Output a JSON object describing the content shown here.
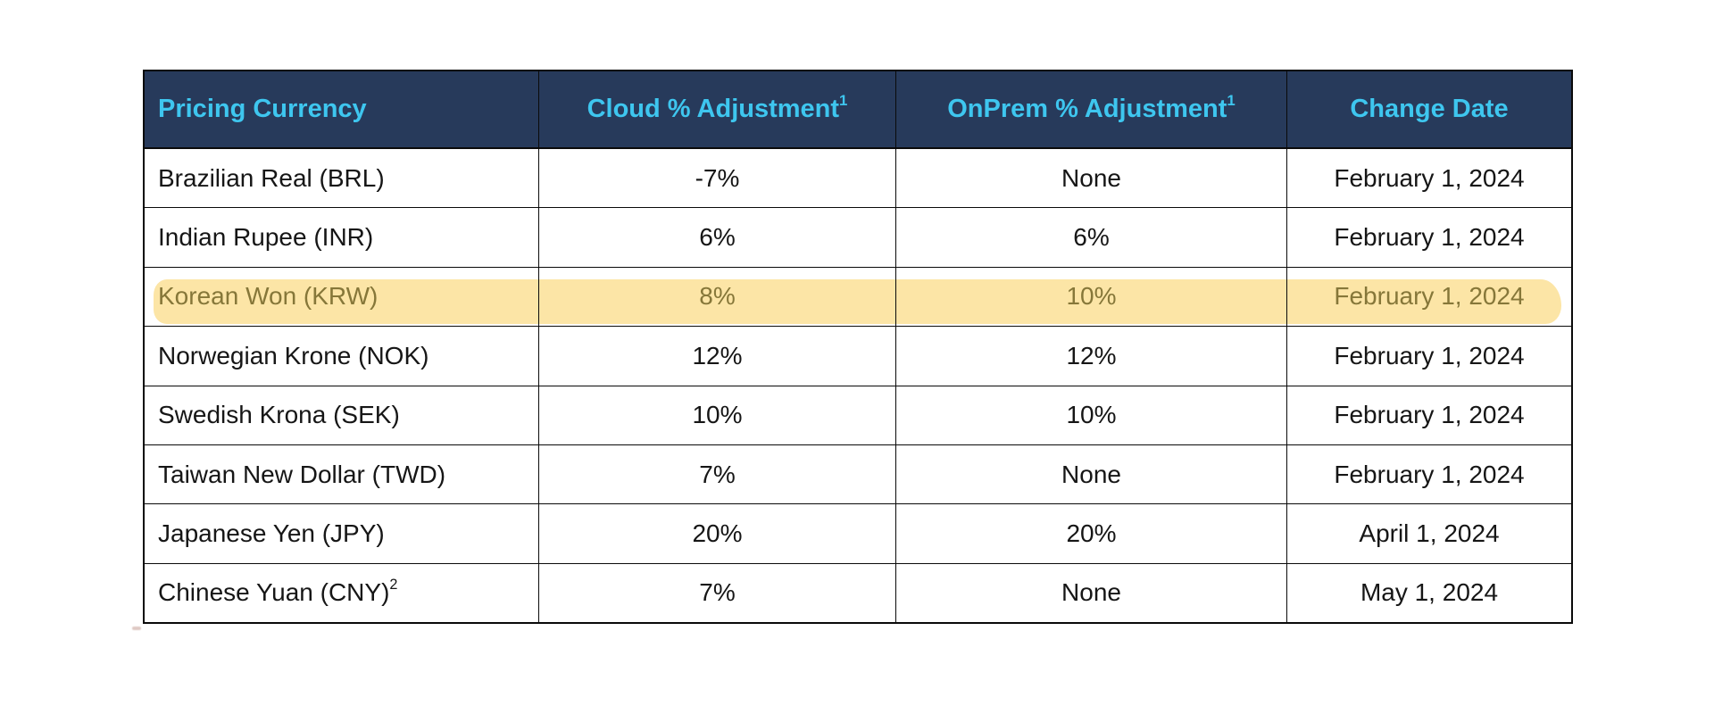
{
  "colors": {
    "page-bg": "#ffffff",
    "header-bg": "#273a5b",
    "header-text": "#3ec6ef",
    "body-text": "#161616",
    "border": "#0a0a0a",
    "highlight": "#fce5a6",
    "highlight-text": "#867739"
  },
  "table": {
    "columns": [
      {
        "label": "Pricing Currency",
        "sup": ""
      },
      {
        "label": "Cloud % Adjustment",
        "sup": "1"
      },
      {
        "label": "OnPrem % Adjustment",
        "sup": "1"
      },
      {
        "label": "Change Date",
        "sup": ""
      }
    ],
    "rows": [
      {
        "currency": "Brazilian Real (BRL)",
        "currency_sup": "",
        "cloud": "-7%",
        "onprem": "None",
        "date": "February 1, 2024",
        "highlighted": false
      },
      {
        "currency": "Indian Rupee (INR)",
        "currency_sup": "",
        "cloud": "6%",
        "onprem": "6%",
        "date": "February 1, 2024",
        "highlighted": false
      },
      {
        "currency": "Korean Won (KRW)",
        "currency_sup": "",
        "cloud": "8%",
        "onprem": "10%",
        "date": "February 1, 2024",
        "highlighted": true
      },
      {
        "currency": "Norwegian Krone (NOK)",
        "currency_sup": "",
        "cloud": "12%",
        "onprem": "12%",
        "date": "February 1, 2024",
        "highlighted": false
      },
      {
        "currency": "Swedish Krona (SEK)",
        "currency_sup": "",
        "cloud": "10%",
        "onprem": "10%",
        "date": "February 1, 2024",
        "highlighted": false
      },
      {
        "currency": "Taiwan New Dollar (TWD)",
        "currency_sup": "",
        "cloud": "7%",
        "onprem": "None",
        "date": "February 1, 2024",
        "highlighted": false
      },
      {
        "currency": "Japanese Yen (JPY)",
        "currency_sup": "",
        "cloud": "20%",
        "onprem": "20%",
        "date": "April 1, 2024",
        "highlighted": false
      },
      {
        "currency": "Chinese Yuan (CNY)",
        "currency_sup": "2",
        "cloud": "7%",
        "onprem": "None",
        "date": "May 1, 2024",
        "highlighted": false
      }
    ]
  }
}
